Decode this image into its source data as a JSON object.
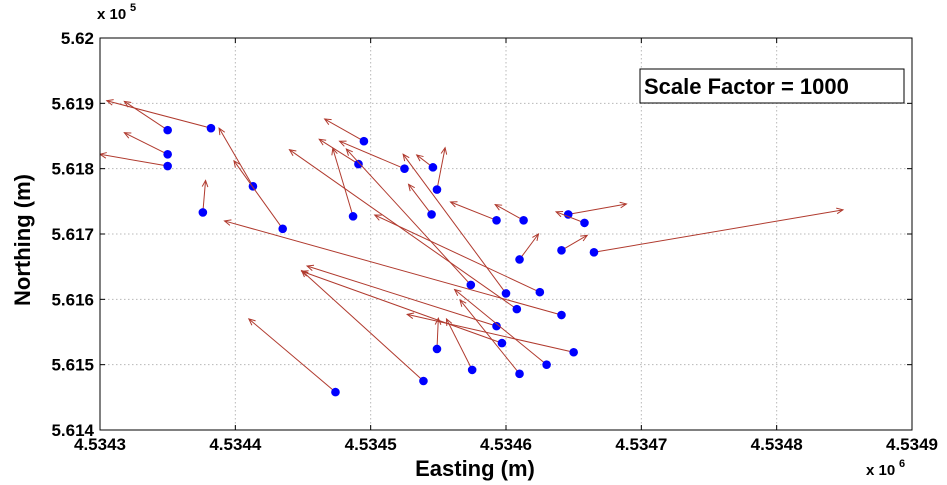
{
  "chart_data": {
    "type": "quiver",
    "xlabel": "Easting (m)",
    "ylabel": "Northing (m)",
    "xlim": [
      4.5343,
      4.5349
    ],
    "ylim": [
      5.614,
      5.62
    ],
    "x_multiplier_label": "x 10",
    "x_multiplier_exponent": "6",
    "y_multiplier_label": "x 10",
    "y_multiplier_exponent": "5",
    "x_ticks": [
      {
        "value": 4.5343,
        "label": "4.5343"
      },
      {
        "value": 4.5344,
        "label": "4.5344"
      },
      {
        "value": 4.5345,
        "label": "4.5345"
      },
      {
        "value": 4.5346,
        "label": "4.5346"
      },
      {
        "value": 4.5347,
        "label": "4.5347"
      },
      {
        "value": 4.5348,
        "label": "4.5348"
      },
      {
        "value": 4.5349,
        "label": "4.5349"
      }
    ],
    "y_ticks": [
      {
        "value": 5.614,
        "label": "5.614"
      },
      {
        "value": 5.615,
        "label": "5.615"
      },
      {
        "value": 5.616,
        "label": "5.616"
      },
      {
        "value": 5.617,
        "label": "5.617"
      },
      {
        "value": 5.618,
        "label": "5.618"
      },
      {
        "value": 5.619,
        "label": "5.619"
      },
      {
        "value": 5.62,
        "label": "5.62"
      }
    ],
    "grid": true,
    "annotation": "Scale Factor = 1000",
    "annotation_position": "top-right",
    "point_color": "#0000ff",
    "arrow_color": "#b03a2e",
    "vectors": [
      {
        "x": 4.53435,
        "y": 5.61859,
        "x_end": 4.534318,
        "y_end": 5.61903
      },
      {
        "x": 4.534382,
        "y": 5.61862,
        "x_end": 4.534305,
        "y_end": 5.61904
      },
      {
        "x": 4.53435,
        "y": 5.61822,
        "x_end": 4.534318,
        "y_end": 5.61855
      },
      {
        "x": 4.53435,
        "y": 5.61804,
        "x_end": 4.5343,
        "y_end": 5.61822
      },
      {
        "x": 4.534376,
        "y": 5.61733,
        "x_end": 4.534378,
        "y_end": 5.61782
      },
      {
        "x": 4.534413,
        "y": 5.61773,
        "x_end": 4.534388,
        "y_end": 5.61862
      },
      {
        "x": 4.534435,
        "y": 5.61708,
        "x_end": 4.534399,
        "y_end": 5.61812
      },
      {
        "x": 4.534495,
        "y": 5.61842,
        "x_end": 4.534466,
        "y_end": 5.61876
      },
      {
        "x": 4.534491,
        "y": 5.61807,
        "x_end": 4.534462,
        "y_end": 5.61845
      },
      {
        "x": 4.534525,
        "y": 5.618,
        "x_end": 4.534477,
        "y_end": 5.61842
      },
      {
        "x": 4.534546,
        "y": 5.61802,
        "x_end": 4.534534,
        "y_end": 5.61821
      },
      {
        "x": 4.534549,
        "y": 5.61768,
        "x_end": 4.534555,
        "y_end": 5.61832
      },
      {
        "x": 4.534487,
        "y": 5.61727,
        "x_end": 4.534472,
        "y_end": 5.61831
      },
      {
        "x": 4.534545,
        "y": 5.6173,
        "x_end": 4.534528,
        "y_end": 5.61776
      },
      {
        "x": 4.534593,
        "y": 5.61721,
        "x_end": 4.534559,
        "y_end": 5.61749
      },
      {
        "x": 4.534613,
        "y": 5.61721,
        "x_end": 4.534592,
        "y_end": 5.61745
      },
      {
        "x": 4.534646,
        "y": 5.6173,
        "x_end": 4.534689,
        "y_end": 5.61746
      },
      {
        "x": 4.534658,
        "y": 5.61717,
        "x_end": 4.534637,
        "y_end": 5.61734
      },
      {
        "x": 4.534641,
        "y": 5.61675,
        "x_end": 4.53466,
        "y_end": 5.61698
      },
      {
        "x": 4.534665,
        "y": 5.61672,
        "x_end": 4.534849,
        "y_end": 5.61737
      },
      {
        "x": 4.53461,
        "y": 5.61661,
        "x_end": 4.534624,
        "y_end": 5.617
      },
      {
        "x": 4.5346,
        "y": 5.61609,
        "x_end": 4.534524,
        "y_end": 5.61822
      },
      {
        "x": 4.534574,
        "y": 5.61622,
        "x_end": 4.534482,
        "y_end": 5.6183
      },
      {
        "x": 4.534608,
        "y": 5.61585,
        "x_end": 4.53444,
        "y_end": 5.61829
      },
      {
        "x": 4.534625,
        "y": 5.61611,
        "x_end": 4.534503,
        "y_end": 5.61729
      },
      {
        "x": 4.534641,
        "y": 5.61576,
        "x_end": 4.534392,
        "y_end": 5.6172
      },
      {
        "x": 4.534593,
        "y": 5.61559,
        "x_end": 4.534453,
        "y_end": 5.61651
      },
      {
        "x": 4.534597,
        "y": 5.61533,
        "x_end": 4.534449,
        "y_end": 5.61643
      },
      {
        "x": 4.53465,
        "y": 5.61519,
        "x_end": 4.534527,
        "y_end": 5.61577
      },
      {
        "x": 4.53463,
        "y": 5.615,
        "x_end": 4.534562,
        "y_end": 5.61615
      },
      {
        "x": 4.53461,
        "y": 5.61486,
        "x_end": 4.534566,
        "y_end": 5.61599
      },
      {
        "x": 4.534575,
        "y": 5.61492,
        "x_end": 4.534556,
        "y_end": 5.6157
      },
      {
        "x": 4.534549,
        "y": 5.61524,
        "x_end": 4.53455,
        "y_end": 5.61571
      },
      {
        "x": 4.534539,
        "y": 5.61475,
        "x_end": 4.534449,
        "y_end": 5.61644
      },
      {
        "x": 4.534474,
        "y": 5.61458,
        "x_end": 4.53441,
        "y_end": 5.6157
      }
    ]
  }
}
